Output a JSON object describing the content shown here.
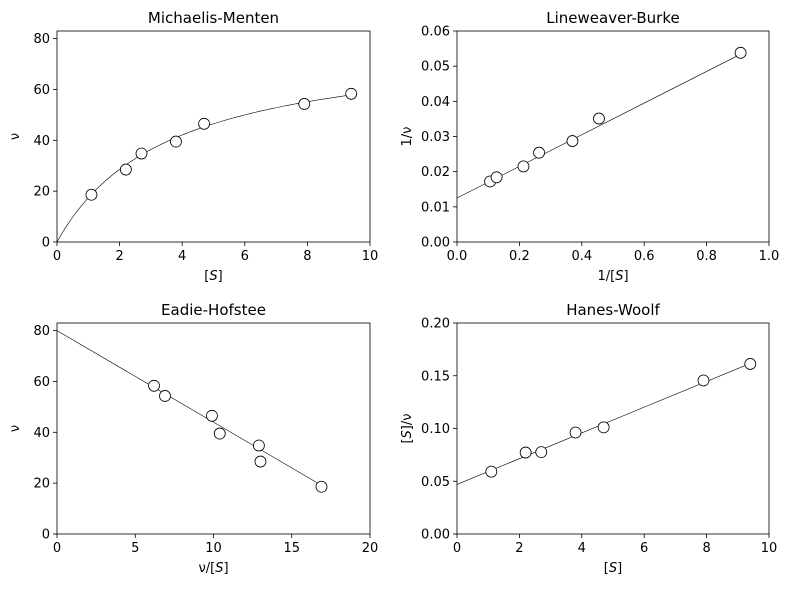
{
  "chart_data": [
    {
      "type": "scatter",
      "title": "Michaelis-Menten",
      "xlabel": "[S]",
      "ylabel": "ν",
      "xlim": [
        0,
        10
      ],
      "ylim": [
        0,
        83
      ],
      "xticks": [
        0,
        2,
        4,
        6,
        8,
        10
      ],
      "yticks": [
        0,
        20,
        40,
        60,
        80
      ],
      "xtick_labels": [
        "0",
        "2",
        "4",
        "6",
        "8",
        "10"
      ],
      "ytick_labels": [
        "0",
        "20",
        "40",
        "60",
        "80"
      ],
      "points": [
        [
          1.1,
          18.6
        ],
        [
          2.2,
          28.5
        ],
        [
          2.7,
          34.8
        ],
        [
          3.8,
          39.5
        ],
        [
          4.7,
          46.5
        ],
        [
          7.9,
          54.3
        ],
        [
          9.4,
          58.3
        ]
      ],
      "fit": {
        "kind": "michaelis-menten",
        "Vmax": 80.0,
        "Km": 3.6
      }
    },
    {
      "type": "scatter",
      "title": "Lineweaver-Burke",
      "xlabel": "1/[S]",
      "ylabel": "1/ν",
      "xlim": [
        0,
        1.0
      ],
      "ylim": [
        0,
        0.06
      ],
      "xticks": [
        0,
        0.2,
        0.4,
        0.6,
        0.8,
        1.0
      ],
      "yticks": [
        0,
        0.01,
        0.02,
        0.03,
        0.04,
        0.05,
        0.06
      ],
      "xtick_labels": [
        "0.0",
        "0.2",
        "0.4",
        "0.6",
        "0.8",
        "1.0"
      ],
      "ytick_labels": [
        "0.00",
        "0.01",
        "0.02",
        "0.03",
        "0.04",
        "0.05",
        "0.06"
      ],
      "points": [
        [
          0.106,
          0.0172
        ],
        [
          0.127,
          0.0184
        ],
        [
          0.213,
          0.0215
        ],
        [
          0.263,
          0.0254
        ],
        [
          0.37,
          0.0287
        ],
        [
          0.455,
          0.0351
        ],
        [
          0.909,
          0.0538
        ]
      ],
      "fit": {
        "kind": "linear",
        "slope": 0.045,
        "intercept": 0.0125,
        "x": [
          0,
          0.909
        ]
      }
    },
    {
      "type": "scatter",
      "title": "Eadie-Hofstee",
      "xlabel": "ν/[S]",
      "ylabel": "ν",
      "xlim": [
        0,
        20
      ],
      "ylim": [
        0,
        83
      ],
      "xticks": [
        0,
        5,
        10,
        15,
        20
      ],
      "yticks": [
        0,
        20,
        40,
        60,
        80
      ],
      "xtick_labels": [
        "0",
        "5",
        "10",
        "15",
        "20"
      ],
      "ytick_labels": [
        "0",
        "20",
        "40",
        "60",
        "80"
      ],
      "points": [
        [
          16.9,
          18.6
        ],
        [
          13.0,
          28.5
        ],
        [
          12.9,
          34.8
        ],
        [
          10.4,
          39.5
        ],
        [
          9.9,
          46.5
        ],
        [
          6.9,
          54.3
        ],
        [
          6.2,
          58.3
        ]
      ],
      "fit": {
        "kind": "linear",
        "slope": -3.6,
        "intercept": 80.0,
        "x": [
          0,
          17
        ]
      }
    },
    {
      "type": "scatter",
      "title": "Hanes-Woolf",
      "xlabel": "[S]",
      "ylabel": "[S]/ν",
      "xlim": [
        0,
        10
      ],
      "ylim": [
        0,
        0.2
      ],
      "xticks": [
        0,
        2,
        4,
        6,
        8,
        10
      ],
      "yticks": [
        0,
        0.05,
        0.1,
        0.15,
        0.2
      ],
      "xtick_labels": [
        "0",
        "2",
        "4",
        "6",
        "8",
        "10"
      ],
      "ytick_labels": [
        "0.00",
        "0.05",
        "0.10",
        "0.15",
        "0.20"
      ],
      "points": [
        [
          1.1,
          0.0591
        ],
        [
          2.2,
          0.0772
        ],
        [
          2.7,
          0.0776
        ],
        [
          3.8,
          0.0962
        ],
        [
          4.7,
          0.1011
        ],
        [
          7.9,
          0.1455
        ],
        [
          9.4,
          0.1612
        ]
      ],
      "fit": {
        "kind": "linear",
        "slope": 0.0122,
        "intercept": 0.047,
        "x": [
          0,
          9.4
        ]
      }
    }
  ]
}
